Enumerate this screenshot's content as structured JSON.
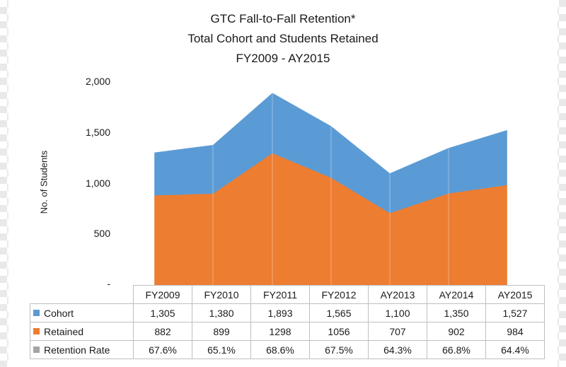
{
  "colors": {
    "cohort": "#5b9bd5",
    "retained": "#ed7d31",
    "retention_rate": "#a5a5a5"
  },
  "chart_data": {
    "type": "area",
    "title_lines": [
      "GTC Fall-to-Fall Retention*",
      "Total Cohort and Students Retained",
      "FY2009 - AY2015"
    ],
    "ylabel": "No. of Students",
    "xlabel": "",
    "ylim": [
      0,
      2000
    ],
    "ytick_labels": [
      "-",
      "500",
      "1,000",
      "1,500",
      "2,000"
    ],
    "ytick_values": [
      0,
      500,
      1000,
      1500,
      2000
    ],
    "categories": [
      "FY2009",
      "FY2010",
      "FY2011",
      "FY2012",
      "AY2013",
      "AY2014",
      "AY2015"
    ],
    "series": [
      {
        "name": "Cohort",
        "values": [
          1305,
          1380,
          1893,
          1565,
          1100,
          1350,
          1527
        ],
        "labels": [
          "1,305",
          "1,380",
          "1,893",
          "1,565",
          "1,100",
          "1,350",
          "1,527"
        ]
      },
      {
        "name": "Retained",
        "values": [
          882,
          899,
          1298,
          1056,
          707,
          902,
          984
        ],
        "labels": [
          "882",
          "899",
          "1298",
          "1056",
          "707",
          "902",
          "984"
        ]
      },
      {
        "name": "Retention Rate",
        "values": [
          67.6,
          65.1,
          68.6,
          67.5,
          64.3,
          66.8,
          64.4
        ],
        "labels": [
          "67.6%",
          "65.1%",
          "68.6%",
          "67.5%",
          "64.3%",
          "66.8%",
          "64.4%"
        ]
      }
    ],
    "grid": false,
    "legend": "data-table"
  }
}
